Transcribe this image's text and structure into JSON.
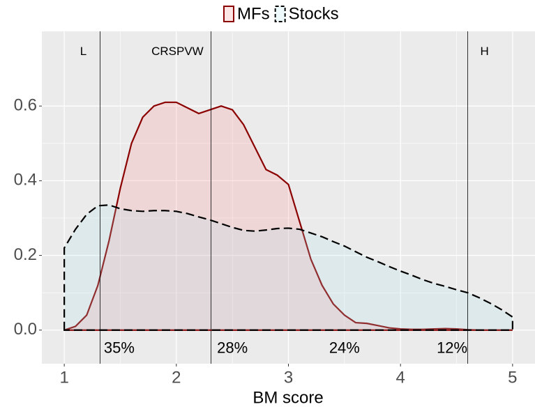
{
  "chart_data": {
    "type": "area",
    "x_label": "BM score",
    "x": [
      1.0,
      1.1,
      1.2,
      1.3,
      1.4,
      1.5,
      1.6,
      1.7,
      1.8,
      1.9,
      2.0,
      2.1,
      2.2,
      2.3,
      2.4,
      2.5,
      2.6,
      2.7,
      2.8,
      2.9,
      3.0,
      3.1,
      3.2,
      3.3,
      3.4,
      3.5,
      3.6,
      3.7,
      3.8,
      3.9,
      4.0,
      4.1,
      4.2,
      4.3,
      4.4,
      4.5,
      4.6,
      4.7,
      4.8,
      4.9,
      5.0
    ],
    "series": [
      {
        "name": "MFs",
        "color": "#8b0000",
        "fill": "#ff8080",
        "linestyle": "solid",
        "values": [
          0,
          0.01,
          0.04,
          0.12,
          0.24,
          0.38,
          0.5,
          0.57,
          0.6,
          0.61,
          0.61,
          0.595,
          0.58,
          0.59,
          0.6,
          0.59,
          0.55,
          0.49,
          0.43,
          0.415,
          0.39,
          0.29,
          0.19,
          0.12,
          0.07,
          0.04,
          0.02,
          0.018,
          0.012,
          0.006,
          0.003,
          0.002,
          0.002,
          0.003,
          0.004,
          0.003,
          0.001,
          0,
          0,
          0,
          0
        ]
      },
      {
        "name": "Stocks",
        "color": "#000000",
        "fill": "#a6e3ea",
        "linestyle": "dashed",
        "values": [
          0.22,
          0.27,
          0.31,
          0.333,
          0.335,
          0.325,
          0.32,
          0.318,
          0.32,
          0.32,
          0.318,
          0.312,
          0.303,
          0.295,
          0.285,
          0.275,
          0.267,
          0.265,
          0.268,
          0.272,
          0.273,
          0.27,
          0.26,
          0.25,
          0.237,
          0.225,
          0.21,
          0.195,
          0.183,
          0.17,
          0.158,
          0.147,
          0.135,
          0.125,
          0.117,
          0.108,
          0.1,
          0.087,
          0.072,
          0.055,
          0.035
        ]
      }
    ],
    "xlim": [
      0.8,
      5.2
    ],
    "ylim": [
      -0.09,
      0.8
    ],
    "xticks": [
      1,
      2,
      3,
      4,
      5
    ],
    "yticks": [
      {
        "value": 0,
        "label": "0.0"
      },
      0.2,
      0.4,
      0.6
    ],
    "grid": true,
    "legend_position": "top",
    "vlines": [
      1.32,
      2.31,
      4.6
    ],
    "annotations": [
      {
        "text": "L",
        "x": 1.17,
        "y": 0.745
      },
      {
        "text": "CRSPVW",
        "x": 2.01,
        "y": 0.745
      },
      {
        "text": "H",
        "x": 4.75,
        "y": 0.745
      }
    ],
    "region_labels": [
      {
        "text": "35%",
        "x": 1.49,
        "y": -0.05
      },
      {
        "text": "28%",
        "x": 2.5,
        "y": -0.05
      },
      {
        "text": "24%",
        "x": 3.5,
        "y": -0.05
      },
      {
        "text": "12%",
        "x": 4.46,
        "y": -0.05
      }
    ]
  }
}
